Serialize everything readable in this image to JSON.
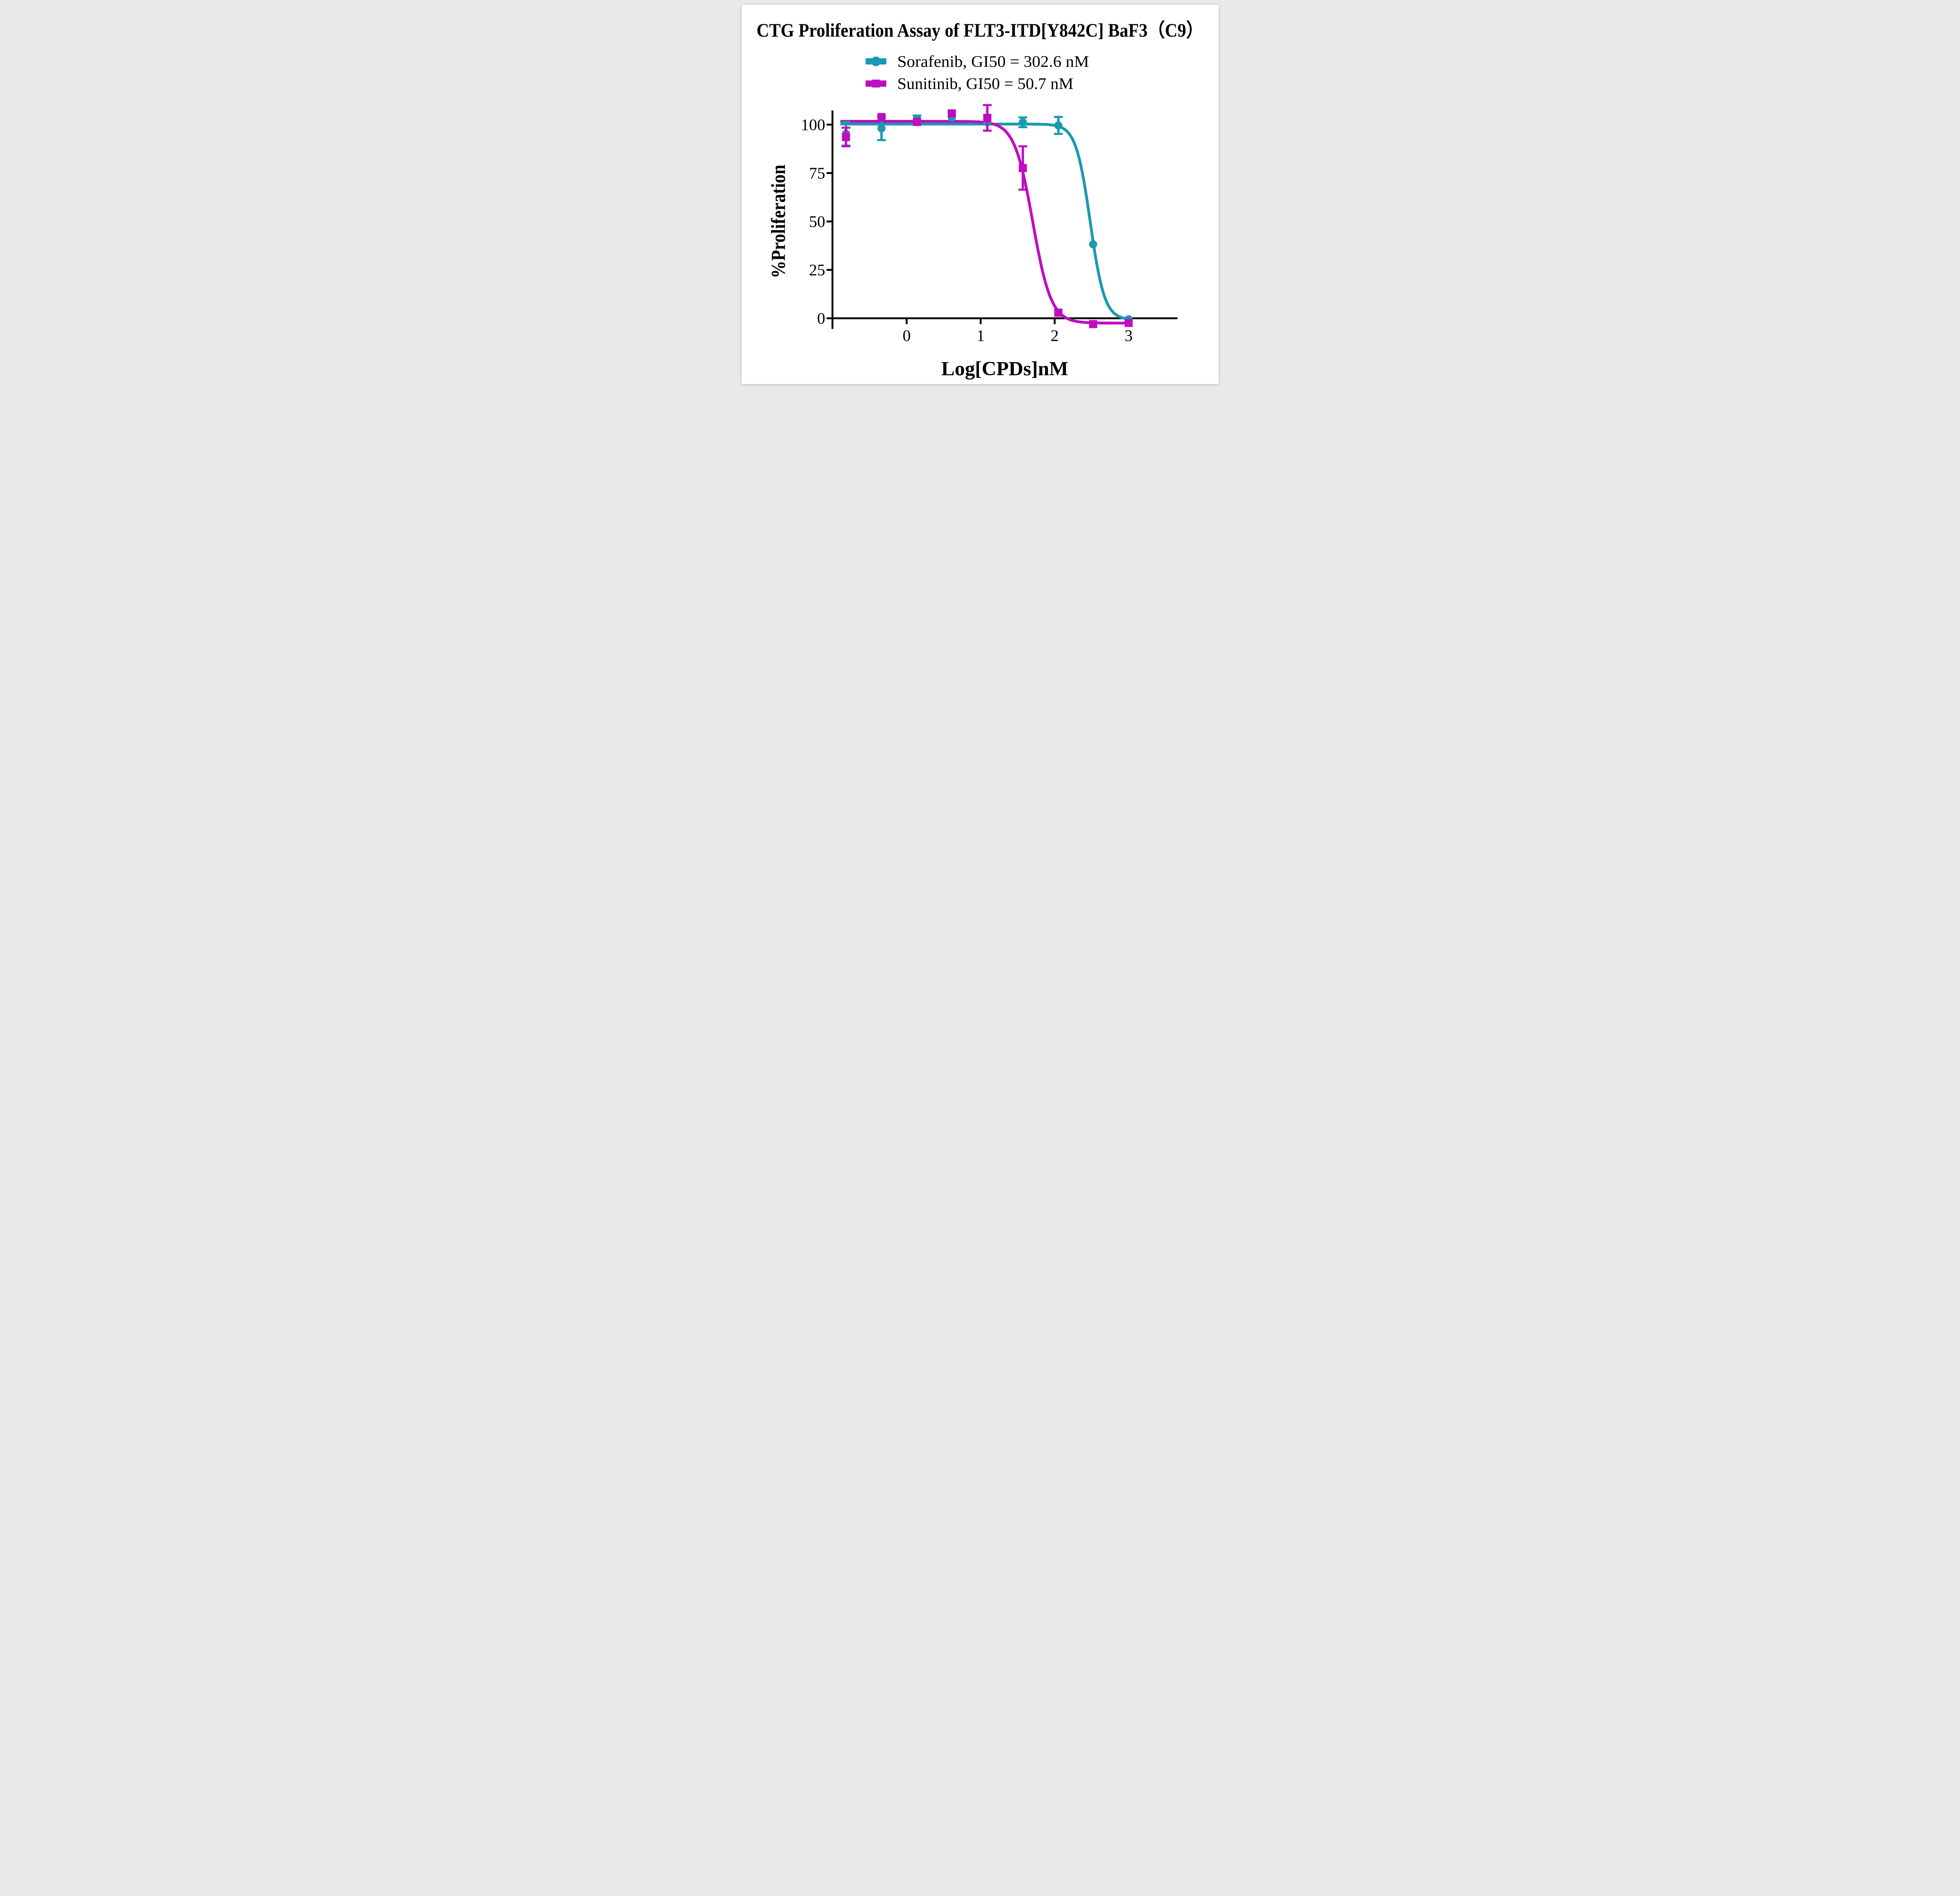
{
  "figure": {
    "background": "#ffffff",
    "axis_color": "#000000",
    "text_color": "#000000"
  },
  "chart_data": {
    "type": "scatter",
    "title": "CTG Proliferation Assay of FLT3-ITD[Y842C] BaF3（C9）",
    "xlabel": "Log[CPDs]nM",
    "ylabel": "%Proliferation",
    "x_ticks": [
      0,
      1,
      2,
      3
    ],
    "y_ticks": [
      0,
      25,
      50,
      75,
      100
    ],
    "xlim": [
      -1.0,
      3.66
    ],
    "ylim": [
      -5.5,
      107.3
    ],
    "grid": false,
    "legend_position": "top-center",
    "x": [
      -0.82,
      -0.34,
      0.14,
      0.61,
      1.09,
      1.57,
      2.05,
      2.52,
      3.0
    ],
    "series": [
      {
        "name": "Sorafenib, GI50 = 302.6 nM",
        "drug": "Sorafenib",
        "gi50_label": "GI50 = 302.6 nM",
        "gi50_nM": 302.6,
        "color": "#1A9AB0",
        "marker": "circle",
        "y": [
          95.3,
          98.1,
          103.0,
          103.7,
          101.3,
          101.2,
          99.6,
          38.2,
          -0.5
        ],
        "err": [
          6.1,
          6.1,
          1.7,
          0,
          0,
          2.5,
          4.4,
          0,
          0
        ],
        "fit": {
          "top": 100.3,
          "bottom": -0.8,
          "log_gi50": 2.481,
          "hill": 4.5
        }
      },
      {
        "name": "Sunitinib, GI50 = 50.7 nM",
        "drug": "Sunitinib",
        "gi50_label": "GI50 = 50.7 nM",
        "gi50_nM": 50.7,
        "color": "#BF0DC0",
        "marker": "square",
        "y": [
          93.6,
          103.9,
          101.4,
          105.8,
          103.5,
          77.6,
          2.9,
          -3.0,
          -2.4
        ],
        "err": [
          4.8,
          0,
          0,
          0,
          6.6,
          11.2,
          0,
          0,
          0
        ],
        "fit": {
          "top": 101.7,
          "bottom": -2.5,
          "log_gi50": 1.705,
          "hill": 3.5
        }
      }
    ]
  }
}
